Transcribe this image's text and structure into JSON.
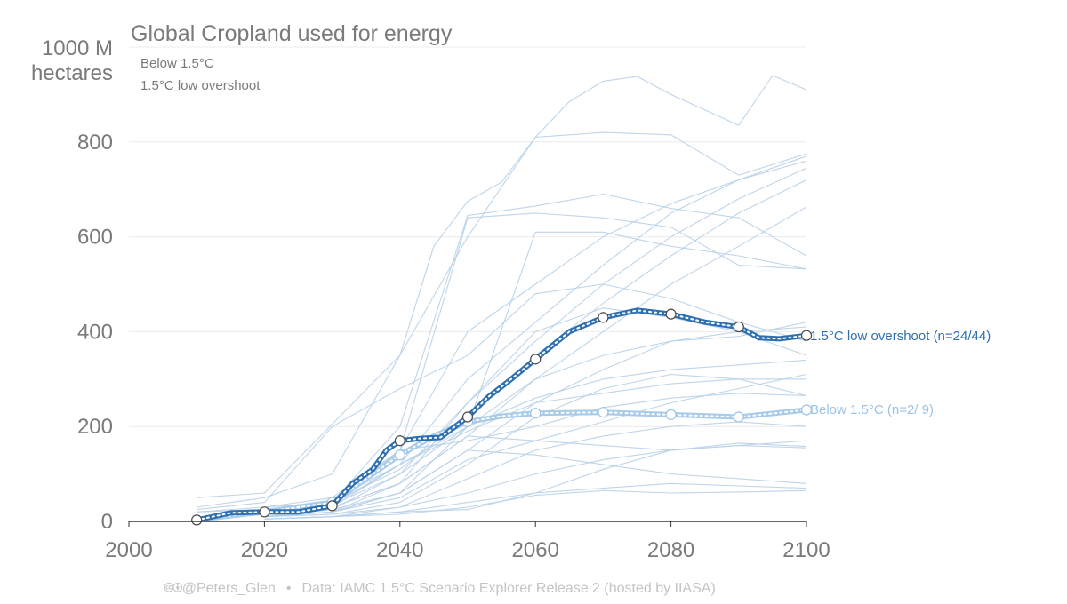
{
  "chart_data": {
    "type": "line",
    "title": "Global Cropland used for energy",
    "ylabel_line1": "1000 M",
    "ylabel_line2": "hectares",
    "xlim": [
      2000,
      2100
    ],
    "ylim": [
      0,
      1000
    ],
    "x_ticks": [
      2000,
      2020,
      2040,
      2060,
      2080,
      2100
    ],
    "y_ticks": [
      0,
      200,
      400,
      600,
      800
    ],
    "grid": true,
    "legend_position": "top-left",
    "legend": [
      "Below 1.5°C",
      "1.5°C low overshoot"
    ],
    "colors": {
      "low_overshoot": "#2e6fb0",
      "below_1_5": "#a9cbea",
      "scenario_lines": "#b7d0e8",
      "text": "#7a7a7a",
      "grid": "#ececec"
    },
    "series": [
      {
        "name": "1.5°C low overshoot",
        "end_label": "1.5°C low overshoot (n=24/44)",
        "x": [
          2010,
          2015,
          2020,
          2025,
          2030,
          2033,
          2036,
          2038,
          2040,
          2043,
          2046,
          2050,
          2053,
          2056,
          2060,
          2065,
          2070,
          2075,
          2080,
          2085,
          2090,
          2093,
          2096,
          2100
        ],
        "y": [
          3,
          18,
          20,
          20,
          33,
          80,
          110,
          150,
          170,
          175,
          177,
          220,
          262,
          295,
          342,
          400,
          430,
          445,
          437,
          420,
          410,
          387,
          385,
          392
        ],
        "markers_x": [
          2010,
          2020,
          2030,
          2040,
          2050,
          2060,
          2070,
          2080,
          2090,
          2100
        ],
        "markers_y": [
          3,
          20,
          33,
          170,
          220,
          342,
          430,
          437,
          410,
          392
        ]
      },
      {
        "name": "Below 1.5°C",
        "end_label": "Below 1.5°C (n=2/ 9)",
        "x": [
          2010,
          2015,
          2020,
          2025,
          2030,
          2035,
          2040,
          2045,
          2050,
          2055,
          2060,
          2070,
          2080,
          2090,
          2100
        ],
        "y": [
          3,
          12,
          20,
          30,
          40,
          90,
          140,
          180,
          210,
          222,
          228,
          230,
          225,
          220,
          235
        ],
        "markers_x": [
          2010,
          2020,
          2030,
          2040,
          2050,
          2060,
          2070,
          2080,
          2090,
          2100
        ],
        "markers_y": [
          3,
          20,
          40,
          140,
          210,
          228,
          230,
          225,
          220,
          235
        ]
      }
    ],
    "background_scenarios": [
      {
        "x": [
          2010,
          2020,
          2040,
          2050,
          2060,
          2065,
          2070,
          2075,
          2080,
          2090,
          2095,
          2100
        ],
        "y": [
          50,
          60,
          350,
          600,
          810,
          885,
          928,
          938,
          900,
          835,
          940,
          910
        ]
      },
      {
        "x": [
          2010,
          2020,
          2030,
          2040,
          2045,
          2050,
          2055,
          2060,
          2070,
          2080,
          2090,
          2100
        ],
        "y": [
          30,
          50,
          100,
          350,
          580,
          675,
          715,
          810,
          820,
          815,
          730,
          775
        ]
      },
      {
        "x": [
          2010,
          2030,
          2040,
          2050,
          2060,
          2070,
          2080,
          2090,
          2100
        ],
        "y": [
          20,
          40,
          200,
          645,
          665,
          690,
          660,
          640,
          560
        ]
      },
      {
        "x": [
          2010,
          2030,
          2040,
          2050,
          2060,
          2070,
          2080,
          2090,
          2100
        ],
        "y": [
          20,
          30,
          150,
          640,
          650,
          640,
          620,
          540,
          532
        ]
      },
      {
        "x": [
          2020,
          2030,
          2040,
          2050,
          2060,
          2070,
          2080,
          2090,
          2100
        ],
        "y": [
          30,
          50,
          150,
          400,
          500,
          600,
          670,
          720,
          770
        ]
      },
      {
        "x": [
          2020,
          2030,
          2040,
          2050,
          2060,
          2070,
          2080,
          2090,
          2100
        ],
        "y": [
          25,
          45,
          120,
          300,
          420,
          540,
          650,
          720,
          760
        ]
      },
      {
        "x": [
          2020,
          2030,
          2040,
          2050,
          2060,
          2070,
          2080,
          2090,
          2100
        ],
        "y": [
          20,
          35,
          100,
          250,
          380,
          500,
          600,
          680,
          745
        ]
      },
      {
        "x": [
          2020,
          2030,
          2040,
          2050,
          2060,
          2070,
          2080,
          2090,
          2100
        ],
        "y": [
          20,
          40,
          110,
          220,
          350,
          460,
          560,
          650,
          720
        ]
      },
      {
        "x": [
          2020,
          2030,
          2040,
          2050,
          2060,
          2070,
          2080,
          2090,
          2100
        ],
        "y": [
          15,
          30,
          80,
          180,
          300,
          400,
          500,
          580,
          663
        ]
      },
      {
        "x": [
          2010,
          2020,
          2030,
          2040,
          2050,
          2060,
          2070,
          2080,
          2090,
          2100
        ],
        "y": [
          25,
          40,
          200,
          280,
          350,
          480,
          500,
          470,
          420,
          380
        ]
      },
      {
        "x": [
          2020,
          2030,
          2040,
          2050,
          2060,
          2070,
          2080,
          2090,
          2100
        ],
        "y": [
          10,
          20,
          60,
          200,
          610,
          610,
          580,
          560,
          532
        ]
      },
      {
        "x": [
          2020,
          2030,
          2040,
          2050,
          2060,
          2070,
          2080,
          2090,
          2100
        ],
        "y": [
          10,
          20,
          80,
          250,
          400,
          450,
          430,
          400,
          350
        ]
      },
      {
        "x": [
          2020,
          2030,
          2040,
          2050,
          2060,
          2070,
          2080,
          2090,
          2100
        ],
        "y": [
          15,
          30,
          120,
          200,
          260,
          300,
          320,
          330,
          340
        ]
      },
      {
        "x": [
          2020,
          2030,
          2040,
          2050,
          2060,
          2070,
          2080,
          2090,
          2100
        ],
        "y": [
          10,
          20,
          60,
          150,
          250,
          320,
          380,
          400,
          410
        ]
      },
      {
        "x": [
          2020,
          2030,
          2040,
          2050,
          2060,
          2070,
          2080,
          2090,
          2100
        ],
        "y": [
          10,
          15,
          40,
          120,
          220,
          280,
          310,
          300,
          265
        ]
      },
      {
        "x": [
          2020,
          2030,
          2040,
          2050,
          2060,
          2070,
          2080,
          2090,
          2100
        ],
        "y": [
          10,
          20,
          50,
          130,
          170,
          210,
          250,
          280,
          310
        ]
      },
      {
        "x": [
          2020,
          2030,
          2040,
          2050,
          2060,
          2070,
          2080,
          2090,
          2100
        ],
        "y": [
          10,
          15,
          30,
          90,
          150,
          180,
          200,
          210,
          200
        ]
      },
      {
        "x": [
          2020,
          2030,
          2040,
          2050,
          2060,
          2070,
          2080,
          2090,
          2100
        ],
        "y": [
          5,
          10,
          30,
          60,
          100,
          130,
          150,
          160,
          170
        ]
      },
      {
        "x": [
          2020,
          2030,
          2040,
          2050,
          2060,
          2070,
          2080,
          2090,
          2100
        ],
        "y": [
          5,
          10,
          20,
          40,
          60,
          70,
          80,
          75,
          70
        ]
      },
      {
        "x": [
          2020,
          2030,
          2040,
          2050,
          2060,
          2070,
          2080,
          2090,
          2100
        ],
        "y": [
          5,
          10,
          15,
          30,
          55,
          65,
          60,
          62,
          65
        ]
      },
      {
        "x": [
          2020,
          2030,
          2040,
          2050,
          2060,
          2070,
          2080,
          2090,
          2100
        ],
        "y": [
          10,
          25,
          60,
          150,
          140,
          120,
          100,
          90,
          80
        ]
      },
      {
        "x": [
          2020,
          2030,
          2040,
          2050,
          2060,
          2070,
          2080,
          2090,
          2100
        ],
        "y": [
          10,
          30,
          80,
          180,
          170,
          160,
          150,
          160,
          155
        ]
      },
      {
        "x": [
          2020,
          2030,
          2040,
          2050,
          2060,
          2070,
          2080,
          2090,
          2100
        ],
        "y": [
          5,
          10,
          20,
          25,
          60,
          110,
          150,
          165,
          158
        ]
      },
      {
        "x": [
          2020,
          2030,
          2040,
          2050,
          2060,
          2070,
          2080,
          2090,
          2100
        ],
        "y": [
          15,
          25,
          100,
          200,
          300,
          350,
          380,
          390,
          420
        ]
      },
      {
        "x": [
          2020,
          2030,
          2040,
          2050,
          2060,
          2070,
          2080,
          2090,
          2100
        ],
        "y": [
          15,
          35,
          120,
          190,
          250,
          270,
          290,
          300,
          300
        ]
      },
      {
        "x": [
          2020,
          2030,
          2040,
          2050,
          2060,
          2070,
          2080,
          2090,
          2100
        ],
        "y": [
          20,
          40,
          150,
          170,
          200,
          240,
          260,
          270,
          265
        ]
      }
    ]
  },
  "footer": {
    "cc_icons": "🅭🅯",
    "author": "@Peters_Glen",
    "separator": "•",
    "source": "Data: IAMC 1.5°C Scenario Explorer Release 2 (hosted by IIASA)"
  }
}
